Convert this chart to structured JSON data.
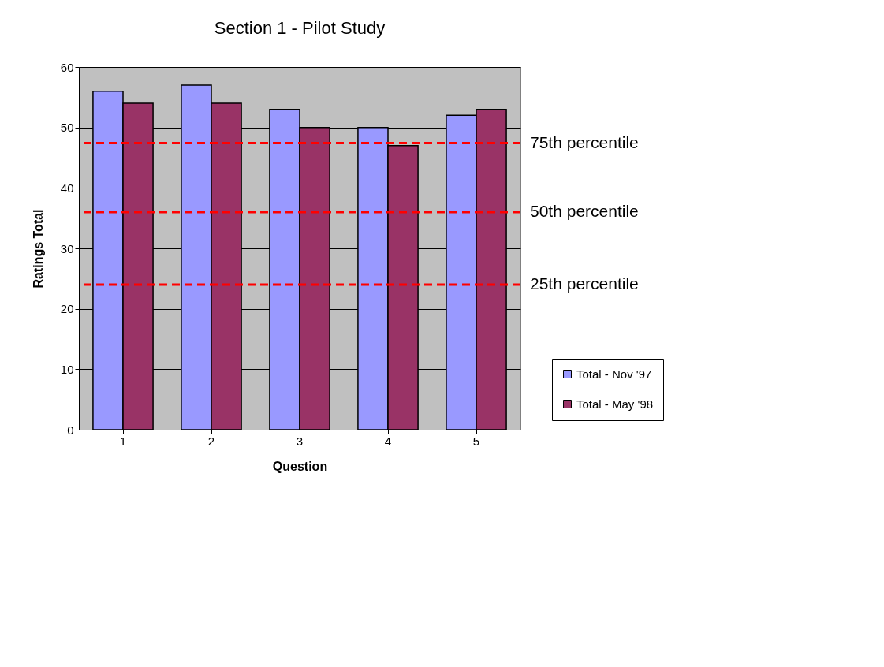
{
  "chart_data": {
    "type": "bar",
    "title": "Section 1 - Pilot Study",
    "xlabel": "Question",
    "ylabel": "Ratings Total",
    "categories": [
      "1",
      "2",
      "3",
      "4",
      "5"
    ],
    "series": [
      {
        "name": "Total - Nov '97",
        "color": "#9999ff",
        "values": [
          56,
          57,
          53,
          50,
          52
        ]
      },
      {
        "name": "Total - May '98",
        "color": "#993366",
        "values": [
          54,
          54,
          50,
          47,
          53
        ]
      }
    ],
    "ylim": [
      0,
      60
    ],
    "yticks": [
      0,
      10,
      20,
      30,
      40,
      50,
      60
    ],
    "grid": "y",
    "legend": "bottom right",
    "ref_lines": [
      {
        "axis": "y",
        "value": 47.4,
        "label": "75th percentile",
        "color": "#ff0000",
        "line_style": "dashed"
      },
      {
        "axis": "y",
        "value": 36,
        "label": "50th percentile",
        "color": "#ff0000",
        "line_style": "dashed"
      },
      {
        "axis": "y",
        "value": 24,
        "label": "25th percentile",
        "color": "#ff0000",
        "line_style": "dashed"
      }
    ]
  }
}
